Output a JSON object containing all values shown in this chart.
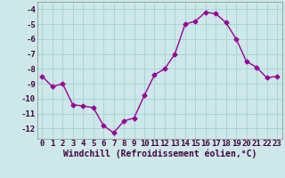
{
  "x": [
    0,
    1,
    2,
    3,
    4,
    5,
    6,
    7,
    8,
    9,
    10,
    11,
    12,
    13,
    14,
    15,
    16,
    17,
    18,
    19,
    20,
    21,
    22,
    23
  ],
  "y": [
    -8.5,
    -9.2,
    -9.0,
    -10.4,
    -10.5,
    -10.6,
    -11.8,
    -12.3,
    -11.5,
    -11.3,
    -9.8,
    -8.4,
    -8.0,
    -7.0,
    -5.0,
    -4.8,
    -4.2,
    -4.3,
    -4.9,
    -6.0,
    -7.5,
    -7.9,
    -8.6,
    -8.5
  ],
  "line_color": "#990099",
  "marker": "D",
  "marker_size": 2.5,
  "bg_color": "#cce8e8",
  "grid_color": "#aad4d4",
  "xlabel": "Windchill (Refroidissement éolien,°C)",
  "ylim": [
    -12.7,
    -3.5
  ],
  "xlim": [
    -0.5,
    23.5
  ],
  "yticks": [
    -12,
    -11,
    -10,
    -9,
    -8,
    -7,
    -6,
    -5,
    -4
  ],
  "xticks": [
    0,
    1,
    2,
    3,
    4,
    5,
    6,
    7,
    8,
    9,
    10,
    11,
    12,
    13,
    14,
    15,
    16,
    17,
    18,
    19,
    20,
    21,
    22,
    23
  ],
  "tick_fontsize": 6.5,
  "xlabel_fontsize": 7,
  "line_width": 1.0
}
